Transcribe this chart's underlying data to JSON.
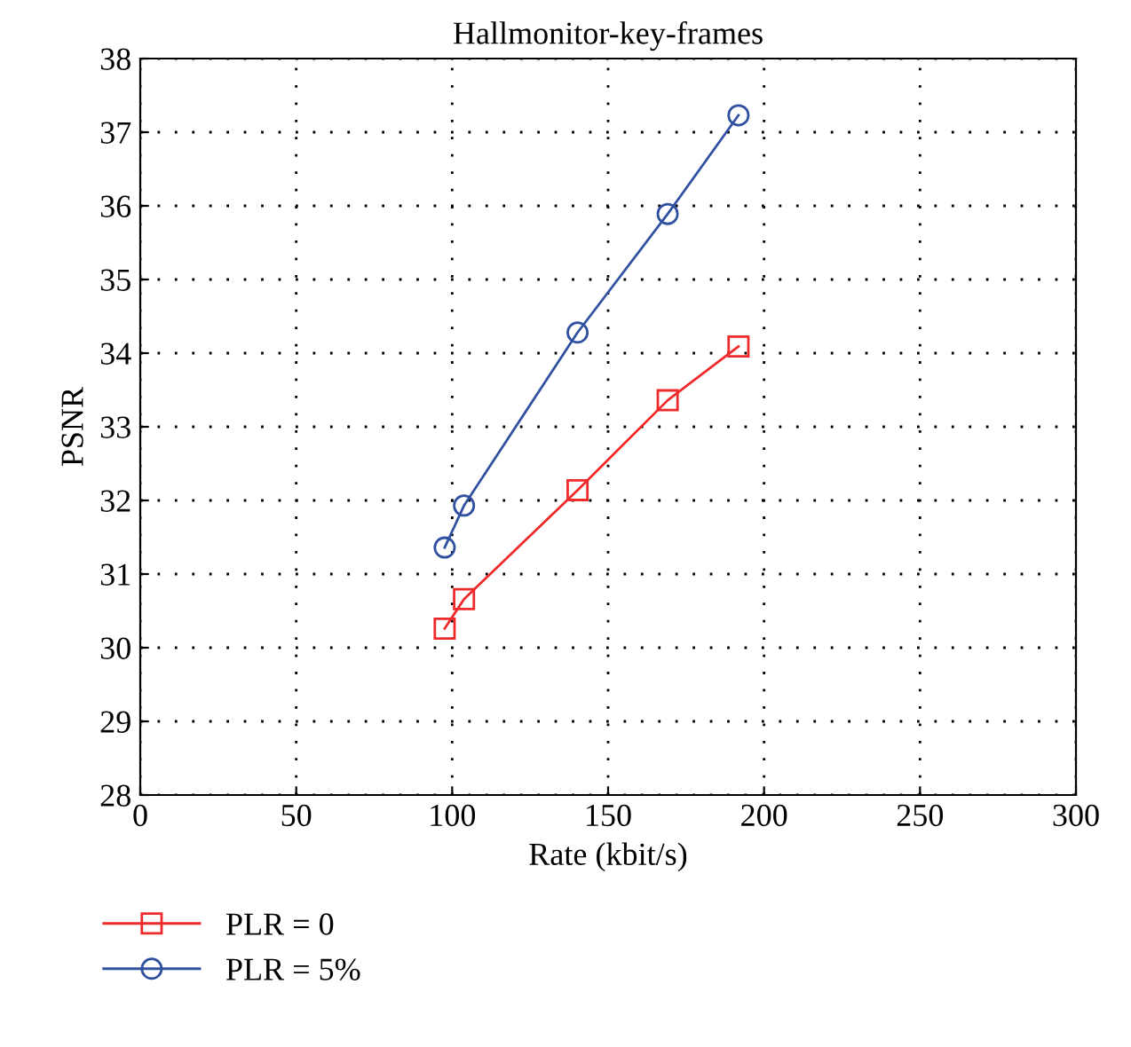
{
  "chart_data": {
    "type": "line",
    "title": "Hallmonitor-key-frames",
    "xlabel": "Rate (kbit/s)",
    "ylabel": "PSNR",
    "xlim": [
      0,
      300
    ],
    "xticks": [
      0,
      50,
      100,
      150,
      200,
      250,
      300
    ],
    "ylim": [
      28,
      38
    ],
    "yticks": [
      28,
      29,
      30,
      31,
      32,
      33,
      34,
      35,
      36,
      37,
      38
    ],
    "grid": true,
    "legend": "bottom left",
    "line_style": "solid",
    "series": [
      {
        "name": "PLR = 0",
        "color": "#ee2a2a",
        "marker": "square",
        "x": [
          97.6,
          103.8,
          140.2,
          169.1,
          191.8
        ],
        "values": [
          30.26,
          30.66,
          32.14,
          33.36,
          34.09
        ]
      },
      {
        "name": "PLR = 5%",
        "color": "#3050a0",
        "marker": "circle",
        "x": [
          97.6,
          103.8,
          140.2,
          169.1,
          191.8
        ],
        "values": [
          31.36,
          31.93,
          34.28,
          35.89,
          37.23
        ]
      }
    ]
  }
}
